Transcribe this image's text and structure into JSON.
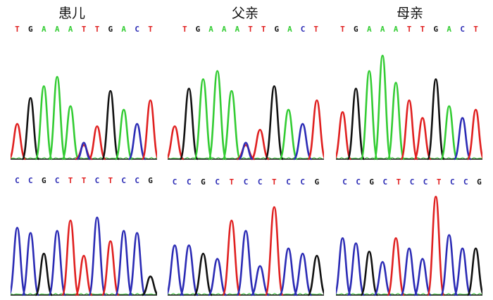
{
  "colors": {
    "A": "#33cc33",
    "C": "#2b2bb5",
    "G": "#111111",
    "T": "#e02020"
  },
  "columns": [
    {
      "title": "患儿"
    },
    {
      "title": "父亲"
    },
    {
      "title": "母亲"
    }
  ],
  "rows": [
    {
      "sequences": [
        "TGAAATTGACT",
        "TGAAATTGACT",
        "TGAAATTGACT"
      ]
    },
    {
      "sequences": [
        "CCGCTTCTCCG",
        "CCGCTCCTCCG",
        "CCGCTCCTCCG"
      ]
    }
  ]
}
